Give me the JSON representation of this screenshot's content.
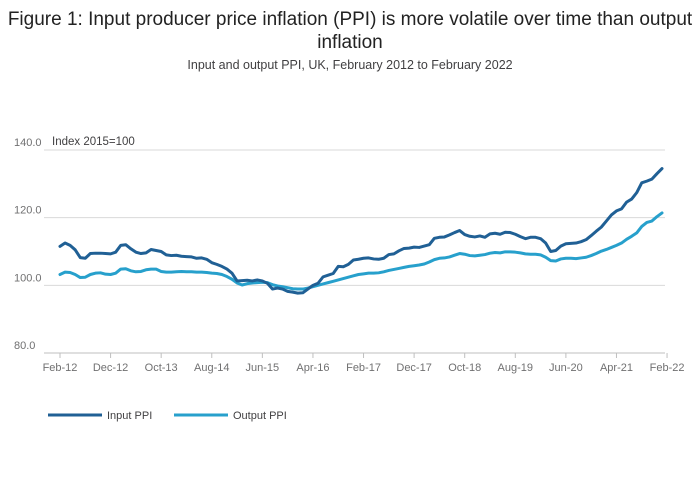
{
  "title": "Figure 1: Input producer price inflation (PPI) is more volatile over time than output inflation",
  "subtitle": "Input and output PPI, UK, February 2012 to February 2022",
  "chart_data": {
    "type": "line",
    "title": "Figure 1: Input producer price inflation (PPI) is more volatile over time than output inflation",
    "subtitle": "Input and output PPI, UK, February 2012 to February 2022",
    "ylabel": "Index 2015=100",
    "xlabel": "",
    "ylim": [
      80,
      140
    ],
    "yticks": [
      "80.0",
      "100.0",
      "120.0",
      "140.0"
    ],
    "xtick_labels": [
      "Feb-12",
      "Dec-12",
      "Oct-13",
      "Aug-14",
      "Jun-15",
      "Apr-16",
      "Feb-17",
      "Dec-17",
      "Oct-18",
      "Aug-19",
      "Jun-20",
      "Apr-21",
      "Feb-22"
    ],
    "grid": true,
    "legend_position": "bottom-left",
    "start_month": "Feb-12",
    "series": [
      {
        "name": "Input PPI",
        "color": "#206095",
        "values": [
          111.5,
          112.5,
          111.8,
          110.5,
          108.2,
          108.0,
          109.4,
          109.5,
          109.5,
          109.4,
          109.3,
          109.8,
          111.8,
          112.0,
          110.8,
          109.8,
          109.4,
          109.6,
          110.6,
          110.3,
          110.0,
          109.0,
          108.8,
          108.9,
          108.6,
          108.5,
          108.4,
          108.0,
          108.1,
          107.7,
          106.7,
          106.2,
          105.6,
          104.8,
          103.6,
          101.3,
          101.4,
          101.5,
          101.3,
          101.6,
          101.3,
          100.6,
          98.9,
          99.2,
          98.9,
          98.2,
          98.0,
          97.7,
          97.8,
          98.9,
          100.0,
          100.6,
          102.5,
          103.0,
          103.5,
          105.6,
          105.5,
          106.2,
          107.5,
          107.7,
          108.0,
          108.1,
          107.8,
          107.7,
          108.0,
          109.1,
          109.3,
          110.2,
          110.9,
          111.0,
          111.3,
          111.2,
          111.6,
          112.0,
          113.9,
          114.2,
          114.3,
          114.9,
          115.6,
          116.2,
          115.0,
          114.5,
          114.3,
          114.6,
          114.2,
          115.2,
          115.4,
          115.1,
          115.7,
          115.6,
          115.1,
          114.4,
          113.8,
          114.2,
          114.2,
          113.8,
          112.5,
          110.0,
          110.3,
          111.6,
          112.3,
          112.4,
          112.5,
          112.9,
          113.5,
          114.7,
          116.0,
          117.2,
          119.0,
          120.8,
          122.0,
          122.6,
          124.6,
          125.5,
          127.4,
          130.3,
          130.8,
          131.4,
          133.0,
          134.5
        ]
      },
      {
        "name": "Output PPI",
        "color": "#27a0cc",
        "values": [
          103.2,
          103.9,
          103.8,
          103.2,
          102.3,
          102.4,
          103.2,
          103.6,
          103.7,
          103.3,
          103.2,
          103.6,
          104.8,
          104.9,
          104.3,
          104.0,
          104.1,
          104.6,
          104.8,
          104.8,
          104.1,
          103.9,
          103.9,
          104.0,
          104.1,
          104.0,
          104.0,
          103.9,
          103.9,
          103.8,
          103.6,
          103.5,
          103.2,
          102.6,
          101.8,
          100.7,
          100.1,
          100.5,
          100.7,
          100.8,
          100.9,
          100.8,
          100.2,
          99.8,
          99.6,
          99.3,
          99.0,
          98.9,
          98.9,
          99.2,
          99.6,
          100.0,
          100.4,
          100.8,
          101.2,
          101.6,
          102.0,
          102.4,
          102.8,
          103.2,
          103.4,
          103.6,
          103.6,
          103.7,
          104.0,
          104.4,
          104.7,
          105.0,
          105.3,
          105.6,
          105.8,
          106.0,
          106.3,
          106.9,
          107.6,
          108.0,
          108.1,
          108.4,
          108.9,
          109.4,
          109.2,
          108.8,
          108.7,
          108.9,
          109.1,
          109.5,
          109.7,
          109.6,
          109.9,
          109.9,
          109.8,
          109.6,
          109.3,
          109.2,
          109.2,
          109.0,
          108.3,
          107.3,
          107.2,
          107.8,
          108.0,
          108.0,
          107.9,
          108.1,
          108.3,
          108.8,
          109.4,
          110.1,
          110.6,
          111.2,
          111.8,
          112.5,
          113.6,
          114.5,
          115.5,
          117.4,
          118.6,
          119.0,
          120.3,
          121.4
        ]
      }
    ]
  }
}
